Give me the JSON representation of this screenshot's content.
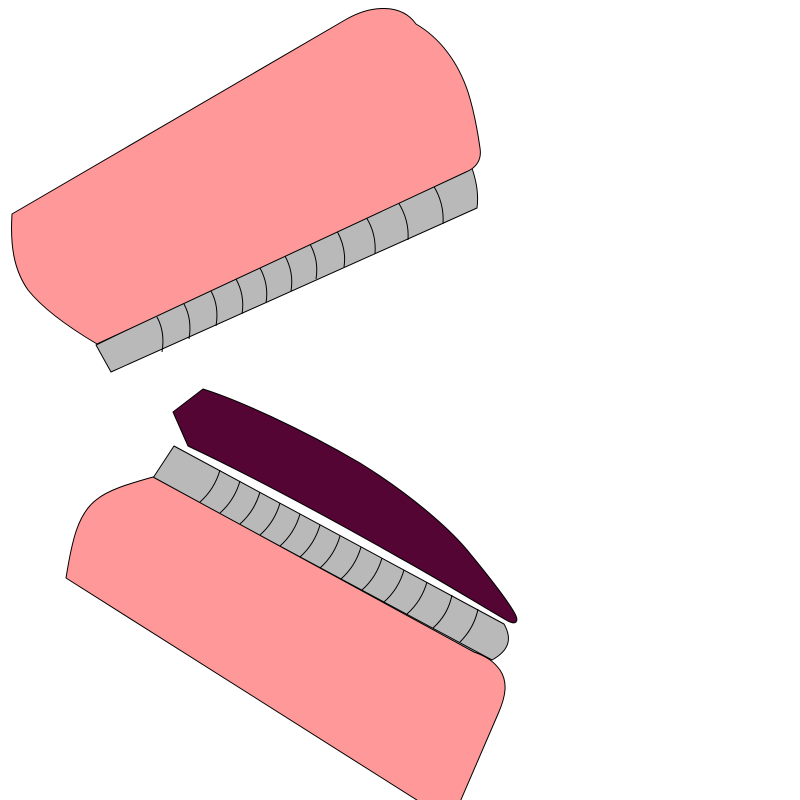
{
  "scene": "open-mouth-illustration",
  "colors": {
    "gum": "#ff9999",
    "teeth": "#b9b9b9",
    "tongue": "#550534",
    "outline": "#000000",
    "background": "#ffffff"
  },
  "upper_jaw": {
    "tooth_count": 12
  },
  "lower_jaw": {
    "tooth_count": 13
  }
}
